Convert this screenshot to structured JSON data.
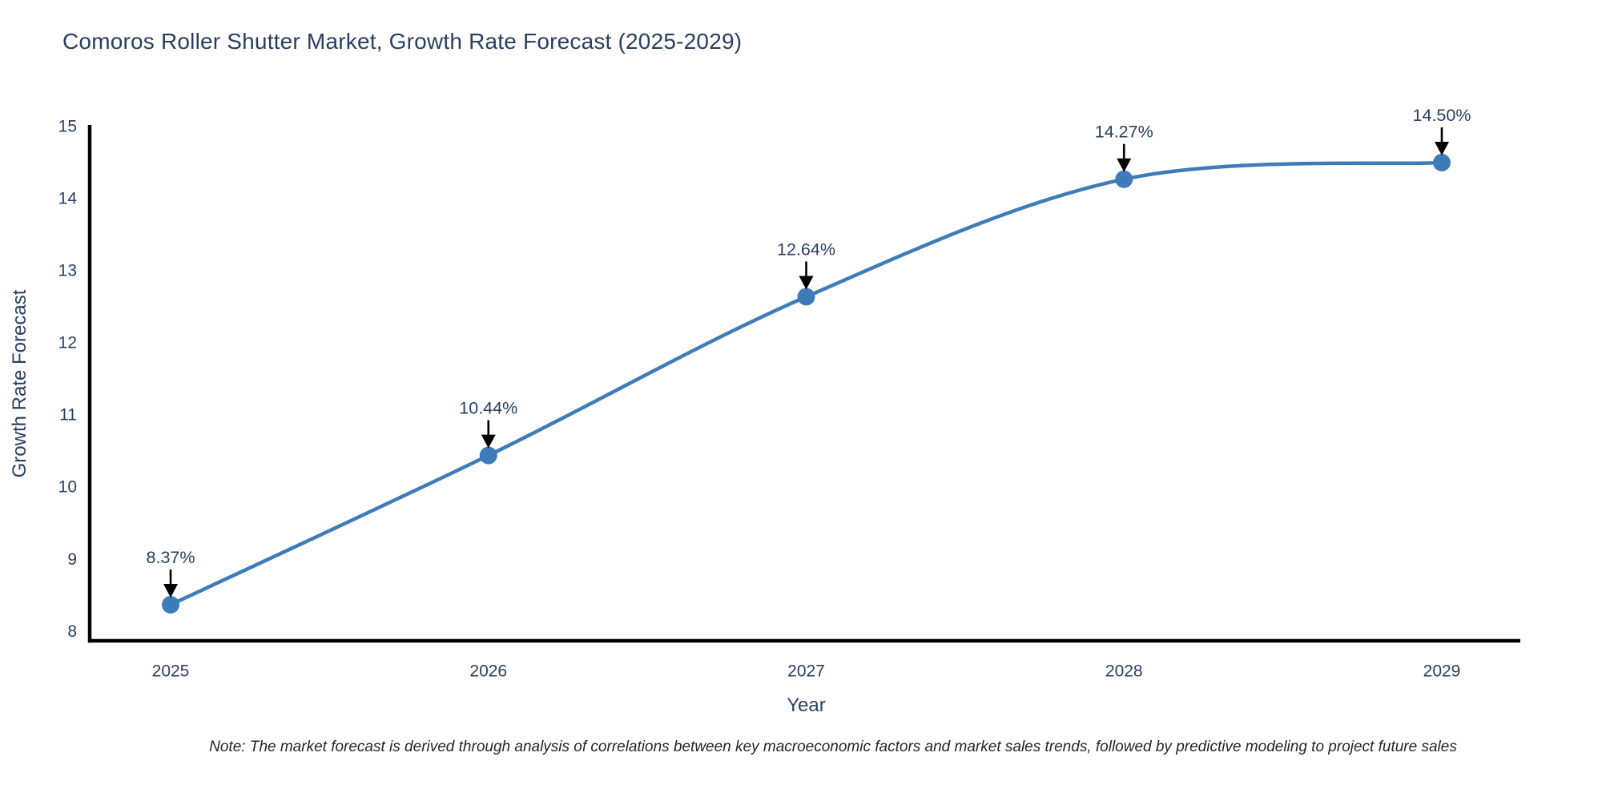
{
  "title": "Comoros Roller Shutter Market, Growth Rate Forecast (2025-2029)",
  "note": "Note: The market forecast is derived through analysis of correlations between key macroeconomic factors and market sales trends, followed by predictive modeling to project future sales",
  "chart_data": {
    "type": "line",
    "title": "Comoros Roller Shutter Market, Growth Rate Forecast (2025-2029)",
    "x": [
      2025,
      2026,
      2027,
      2028,
      2029
    ],
    "xticklabels": [
      "2025",
      "2026",
      "2027",
      "2028",
      "2029"
    ],
    "series": [
      {
        "name": "Growth Rate Forecast",
        "values": [
          8.37,
          10.44,
          12.64,
          14.27,
          14.5
        ]
      }
    ],
    "point_labels": [
      "8.37%",
      "10.44%",
      "12.64%",
      "14.27%",
      "14.50%"
    ],
    "xlabel": "Year",
    "ylabel": "Growth Rate Forecast",
    "ylim": [
      7.87,
      15
    ],
    "yticks": [
      8,
      9,
      10,
      11,
      12,
      13,
      14,
      15
    ],
    "grid": false,
    "legend_position": "none",
    "line_shape": "spline",
    "colors": {
      "line": "#3E7CB9",
      "marker": "#3E7CB9",
      "arrow": "#000000",
      "axis": "#000000",
      "label_text": "#2a3f5f",
      "note_text": "#262626"
    }
  }
}
